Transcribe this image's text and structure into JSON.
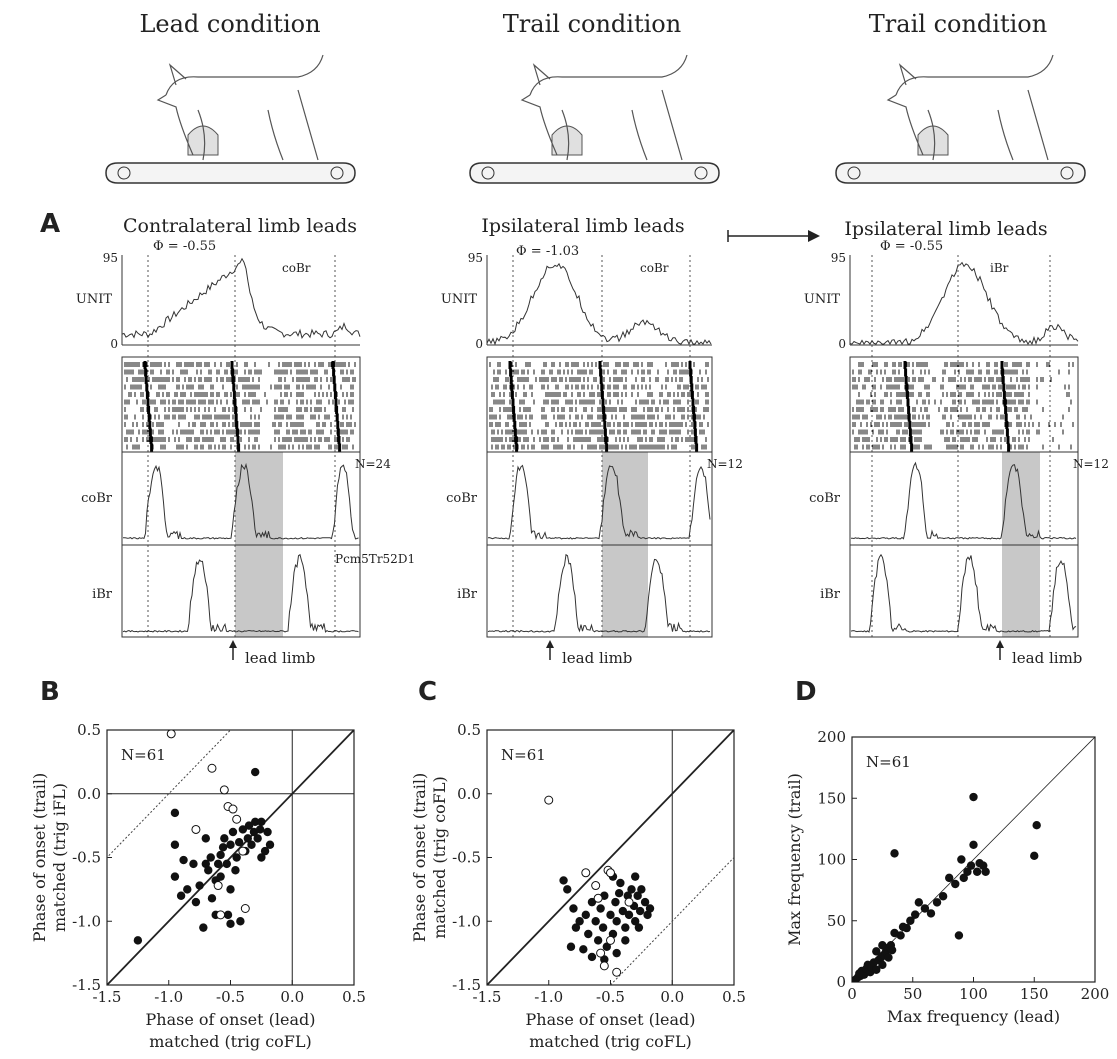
{
  "conditions": {
    "left": "Lead condition",
    "middle": "Trail condition",
    "right": "Trail condition"
  },
  "panel_labels": {
    "A": "A",
    "B": "B",
    "C": "C",
    "D": "D"
  },
  "panel_a": {
    "left": {
      "title": "Contralateral limb leads",
      "phi": "Φ = -0.55",
      "unit_tag": "coBr",
      "n": "N=24",
      "cell": "Pcm5Tr52D1"
    },
    "middle": {
      "title": "Ipsilateral limb leads",
      "phi": "Φ = -1.03",
      "unit_tag": "coBr",
      "n": "N=12"
    },
    "right": {
      "title": "Ipsilateral limb leads",
      "phi": "Φ = -0.55",
      "unit_tag": "iBr",
      "n": "N=12"
    },
    "row_labels": {
      "unit": "UNIT",
      "cobr": "coBr",
      "ibr": "iBr"
    },
    "y_top": "95",
    "y_zero": "0",
    "lead_limb": "lead limb"
  },
  "chart_data": [
    {
      "panel": "B",
      "type": "scatter",
      "n_label": "N=61",
      "xlabel_1": "Phase of onset (lead)",
      "xlabel_2": "matched (trig coFL)",
      "ylabel_1": "Phase of onset (trail)",
      "ylabel_2": "matched (trig iFL)",
      "xlim": [
        -1.5,
        0.5
      ],
      "ylim": [
        -1.5,
        0.5
      ],
      "xticks": [
        "-1.5",
        "-1.0",
        "-0.5",
        "0.0",
        "0.5"
      ],
      "yticks": [
        "-1.5",
        "-1.0",
        "-0.5",
        "0.0",
        "0.5"
      ],
      "filled": [
        [
          -1.25,
          -1.15
        ],
        [
          -0.95,
          -0.4
        ],
        [
          -0.95,
          -0.65
        ],
        [
          -0.9,
          -0.8
        ],
        [
          -0.85,
          -0.75
        ],
        [
          -0.8,
          -0.55
        ],
        [
          -0.78,
          -0.85
        ],
        [
          -0.75,
          -0.72
        ],
        [
          -0.72,
          -1.05
        ],
        [
          -0.7,
          -0.55
        ],
        [
          -0.68,
          -0.6
        ],
        [
          -0.66,
          -0.5
        ],
        [
          -0.65,
          -0.82
        ],
        [
          -0.62,
          -0.68
        ],
        [
          -0.6,
          -0.55
        ],
        [
          -0.58,
          -0.48
        ],
        [
          -0.56,
          -0.42
        ],
        [
          -0.55,
          -0.35
        ],
        [
          -0.53,
          -0.55
        ],
        [
          -0.5,
          -0.4
        ],
        [
          -0.48,
          -0.3
        ],
        [
          -0.46,
          -0.6
        ],
        [
          -0.45,
          -0.5
        ],
        [
          -0.43,
          -0.38
        ],
        [
          -0.4,
          -0.28
        ],
        [
          -0.38,
          -0.45
        ],
        [
          -0.36,
          -0.35
        ],
        [
          -0.35,
          -0.25
        ],
        [
          -0.33,
          -0.4
        ],
        [
          -0.31,
          -0.3
        ],
        [
          -0.3,
          -0.22
        ],
        [
          -0.28,
          -0.35
        ],
        [
          -0.26,
          -0.28
        ],
        [
          -0.25,
          -0.22
        ],
        [
          -0.22,
          -0.45
        ],
        [
          -0.2,
          -0.3
        ],
        [
          -0.18,
          -0.4
        ],
        [
          -0.3,
          0.17
        ],
        [
          -0.7,
          -0.35
        ],
        [
          -0.52,
          -0.95
        ],
        [
          -0.62,
          -0.95
        ],
        [
          -0.42,
          -1.0
        ],
        [
          -0.58,
          -0.65
        ],
        [
          -0.5,
          -0.75
        ],
        [
          -0.5,
          -1.02
        ],
        [
          -0.95,
          -0.15
        ],
        [
          -0.88,
          -0.52
        ],
        [
          -0.25,
          -0.5
        ]
      ],
      "open": [
        [
          -0.98,
          0.47
        ],
        [
          -0.65,
          0.2
        ],
        [
          -0.55,
          0.03
        ],
        [
          -0.52,
          -0.1
        ],
        [
          -0.48,
          -0.12
        ],
        [
          -0.78,
          -0.28
        ],
        [
          -0.45,
          -0.2
        ],
        [
          -0.38,
          -0.9
        ],
        [
          -0.58,
          -0.95
        ],
        [
          -0.6,
          -0.72
        ],
        [
          -0.4,
          -0.45
        ]
      ],
      "diagonal": "y = x",
      "offset_line": "y = x + 1"
    },
    {
      "panel": "C",
      "type": "scatter",
      "n_label": "N=61",
      "xlabel_1": "Phase of onset (lead)",
      "xlabel_2": "matched (trig coFL)",
      "ylabel_1": "Phase of onset (trail)",
      "ylabel_2": "matched (trig coFL)",
      "xlim": [
        -1.5,
        0.5
      ],
      "ylim": [
        -1.5,
        0.5
      ],
      "xticks": [
        "-1.5",
        "-1.0",
        "-0.5",
        "0.0",
        "0.5"
      ],
      "yticks": [
        "-1.5",
        "-1.0",
        "-0.5",
        "0.0",
        "0.5"
      ],
      "filled": [
        [
          -0.85,
          -0.75
        ],
        [
          -0.82,
          -1.2
        ],
        [
          -0.8,
          -0.9
        ],
        [
          -0.78,
          -1.05
        ],
        [
          -0.75,
          -1.0
        ],
        [
          -0.72,
          -1.22
        ],
        [
          -0.7,
          -0.95
        ],
        [
          -0.68,
          -1.1
        ],
        [
          -0.65,
          -0.85
        ],
        [
          -0.62,
          -1.0
        ],
        [
          -0.6,
          -1.15
        ],
        [
          -0.58,
          -0.9
        ],
        [
          -0.56,
          -1.05
        ],
        [
          -0.55,
          -0.8
        ],
        [
          -0.53,
          -1.2
        ],
        [
          -0.5,
          -0.95
        ],
        [
          -0.48,
          -1.1
        ],
        [
          -0.46,
          -0.85
        ],
        [
          -0.45,
          -1.0
        ],
        [
          -0.43,
          -0.78
        ],
        [
          -0.4,
          -0.92
        ],
        [
          -0.38,
          -1.05
        ],
        [
          -0.36,
          -0.8
        ],
        [
          -0.35,
          -0.95
        ],
        [
          -0.33,
          -0.75
        ],
        [
          -0.31,
          -0.88
        ],
        [
          -0.3,
          -1.0
        ],
        [
          -0.28,
          -0.8
        ],
        [
          -0.26,
          -0.92
        ],
        [
          -0.25,
          -0.75
        ],
        [
          -0.22,
          -0.85
        ],
        [
          -0.2,
          -0.95
        ],
        [
          -0.18,
          -0.9
        ],
        [
          -0.3,
          -0.65
        ],
        [
          -0.45,
          -1.25
        ],
        [
          -0.88,
          -0.68
        ],
        [
          -0.65,
          -1.28
        ],
        [
          -0.55,
          -1.3
        ],
        [
          -0.42,
          -0.7
        ],
        [
          -0.48,
          -0.65
        ],
        [
          -0.38,
          -1.15
        ],
        [
          -0.27,
          -1.05
        ]
      ],
      "open": [
        [
          -1.0,
          -0.05
        ],
        [
          -0.7,
          -0.62
        ],
        [
          -0.62,
          -0.72
        ],
        [
          -0.52,
          -0.6
        ],
        [
          -0.5,
          -0.62
        ],
        [
          -0.58,
          -1.25
        ],
        [
          -0.55,
          -1.35
        ],
        [
          -0.45,
          -1.4
        ],
        [
          -0.35,
          -0.85
        ],
        [
          -0.5,
          -1.15
        ],
        [
          -0.6,
          -0.82
        ]
      ],
      "diagonal": "y = x",
      "offset_line": "y = x - 1"
    },
    {
      "panel": "D",
      "type": "scatter",
      "n_label": "N=61",
      "xlabel_1": "Max frequency (lead)",
      "ylabel_1": "Max frequency (trail)",
      "xlim": [
        0,
        200
      ],
      "ylim": [
        0,
        200
      ],
      "xticks": [
        "0",
        "50",
        "100",
        "150",
        "200"
      ],
      "yticks": [
        "0",
        "50",
        "100",
        "150",
        "200"
      ],
      "filled": [
        [
          3,
          2
        ],
        [
          5,
          4
        ],
        [
          7,
          5
        ],
        [
          8,
          9
        ],
        [
          10,
          6
        ],
        [
          12,
          11
        ],
        [
          13,
          14
        ],
        [
          15,
          8
        ],
        [
          16,
          12
        ],
        [
          18,
          16
        ],
        [
          20,
          10
        ],
        [
          22,
          18
        ],
        [
          24,
          20
        ],
        [
          25,
          14
        ],
        [
          26,
          22
        ],
        [
          28,
          25
        ],
        [
          30,
          28
        ],
        [
          30,
          20
        ],
        [
          32,
          30
        ],
        [
          33,
          26
        ],
        [
          35,
          105
        ],
        [
          40,
          38
        ],
        [
          45,
          44
        ],
        [
          48,
          50
        ],
        [
          52,
          55
        ],
        [
          55,
          65
        ],
        [
          60,
          60
        ],
        [
          65,
          56
        ],
        [
          70,
          65
        ],
        [
          75,
          70
        ],
        [
          80,
          85
        ],
        [
          85,
          80
        ],
        [
          88,
          38
        ],
        [
          90,
          100
        ],
        [
          92,
          85
        ],
        [
          95,
          90
        ],
        [
          98,
          95
        ],
        [
          100,
          151
        ],
        [
          100,
          112
        ],
        [
          103,
          90
        ],
        [
          105,
          97
        ],
        [
          108,
          95
        ],
        [
          110,
          90
        ],
        [
          150,
          103
        ],
        [
          152,
          128
        ],
        [
          20,
          25
        ],
        [
          25,
          30
        ],
        [
          35,
          40
        ],
        [
          42,
          45
        ],
        [
          6,
          7
        ]
      ],
      "open": [],
      "diagonal": "y = x"
    }
  ]
}
